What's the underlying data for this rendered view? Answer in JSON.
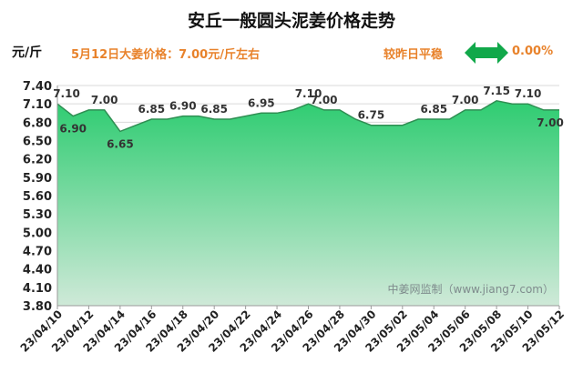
{
  "header": {
    "title": "安丘一般圆头泥姜价格走势",
    "unit": "元/斤",
    "price_text": "5月12日大姜价格：7.00元/斤左右",
    "compare_text": "较昨日平稳",
    "change_text": "0.00%"
  },
  "colors": {
    "accent_text": "#e8822b",
    "fill_top": "#2ecc71",
    "fill_bottom": "#cfe9d8",
    "line": "#2f8f53",
    "arrow": "#11a84a"
  },
  "chart_data": {
    "type": "area",
    "title": "安丘一般圆头泥姜价格走势",
    "xlabel": "",
    "ylabel": "元/斤",
    "ylim": [
      3.8,
      7.4
    ],
    "yticks": [
      "3.80",
      "4.10",
      "4.40",
      "4.70",
      "5.00",
      "5.30",
      "5.60",
      "5.90",
      "6.20",
      "6.50",
      "6.80",
      "7.10",
      "7.40"
    ],
    "xticks": [
      "23/04/10",
      "23/04/12",
      "23/04/14",
      "23/04/16",
      "23/04/18",
      "23/04/20",
      "23/04/22",
      "23/04/24",
      "23/04/26",
      "23/04/28",
      "23/04/30",
      "23/05/02",
      "23/05/04",
      "23/05/06",
      "23/05/08",
      "23/05/10",
      "23/05/12"
    ],
    "x": [
      "23/04/10",
      "23/04/11",
      "23/04/12",
      "23/04/13",
      "23/04/14",
      "23/04/15",
      "23/04/16",
      "23/04/17",
      "23/04/18",
      "23/04/19",
      "23/04/20",
      "23/04/21",
      "23/04/22",
      "23/04/23",
      "23/04/24",
      "23/04/25",
      "23/04/26",
      "23/04/27",
      "23/04/28",
      "23/04/29",
      "23/04/30",
      "23/05/01",
      "23/05/02",
      "23/05/03",
      "23/05/04",
      "23/05/05",
      "23/05/06",
      "23/05/07",
      "23/05/08",
      "23/05/09",
      "23/05/10",
      "23/05/11",
      "23/05/12"
    ],
    "values": [
      7.1,
      6.9,
      7.0,
      7.0,
      6.65,
      6.75,
      6.85,
      6.85,
      6.9,
      6.9,
      6.85,
      6.85,
      6.9,
      6.95,
      6.95,
      7.0,
      7.1,
      7.0,
      7.0,
      6.85,
      6.75,
      6.75,
      6.75,
      6.85,
      6.85,
      6.85,
      7.0,
      7.0,
      7.15,
      7.1,
      7.1,
      7.0,
      7.0
    ],
    "data_labels": [
      {
        "i": 0,
        "text": "7.10",
        "pos": "above"
      },
      {
        "i": 1,
        "text": "6.90",
        "pos": "below"
      },
      {
        "i": 3,
        "text": "7.00",
        "pos": "above"
      },
      {
        "i": 4,
        "text": "6.65",
        "pos": "below"
      },
      {
        "i": 6,
        "text": "6.85",
        "pos": "above"
      },
      {
        "i": 8,
        "text": "6.90",
        "pos": "above"
      },
      {
        "i": 10,
        "text": "6.85",
        "pos": "above"
      },
      {
        "i": 13,
        "text": "6.95",
        "pos": "above"
      },
      {
        "i": 16,
        "text": "7.10",
        "pos": "above"
      },
      {
        "i": 17,
        "text": "7.00",
        "pos": "above"
      },
      {
        "i": 20,
        "text": "6.75",
        "pos": "above"
      },
      {
        "i": 24,
        "text": "6.85",
        "pos": "above"
      },
      {
        "i": 26,
        "text": "7.00",
        "pos": "above"
      },
      {
        "i": 28,
        "text": "7.15",
        "pos": "above"
      },
      {
        "i": 30,
        "text": "7.10",
        "pos": "above"
      },
      {
        "i": 32,
        "text": "7.00",
        "pos": "below"
      }
    ],
    "watermark": "中姜网监制（www.jiang7.com）",
    "grid": true
  }
}
